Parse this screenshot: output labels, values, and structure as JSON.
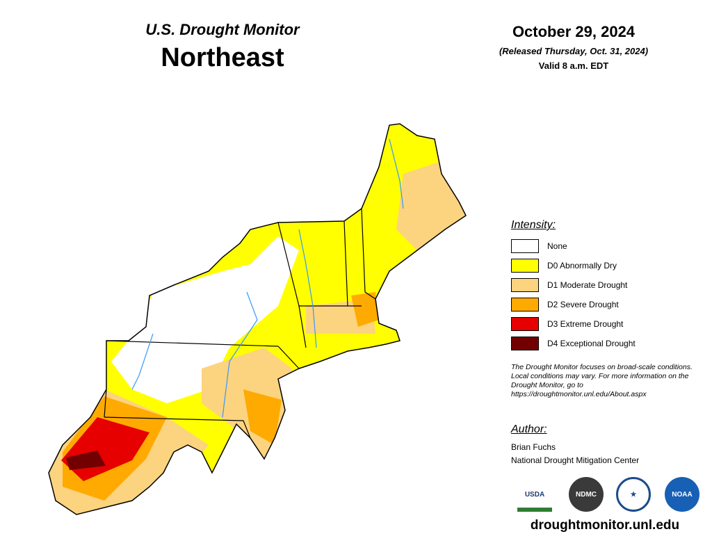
{
  "header": {
    "title": "U.S. Drought Monitor",
    "region": "Northeast"
  },
  "date": {
    "date": "October 29, 2024",
    "released": "(Released Thursday, Oct. 31, 2024)",
    "valid": "Valid 8 a.m. EDT"
  },
  "legend": {
    "title": "Intensity:",
    "items": [
      {
        "label": "None",
        "color": "#ffffff"
      },
      {
        "label": "D0 Abnormally Dry",
        "color": "#ffff00"
      },
      {
        "label": "D1 Moderate Drought",
        "color": "#fcd37f"
      },
      {
        "label": "D2 Severe Drought",
        "color": "#ffaa00"
      },
      {
        "label": "D3 Extreme Drought",
        "color": "#e60000"
      },
      {
        "label": "D4 Exceptional Drought",
        "color": "#730000"
      }
    ]
  },
  "note": "The Drought Monitor focuses on broad-scale conditions. Local conditions may vary. For more information on the Drought Monitor, go to https://droughtmonitor.unl.edu/About.aspx",
  "author": {
    "title": "Author:",
    "name": "Brian Fuchs",
    "org": "National Drought Mitigation Center"
  },
  "logos": [
    "USDA",
    "NDMC",
    "NOAA"
  ],
  "url": "droughtmonitor.unl.edu"
}
